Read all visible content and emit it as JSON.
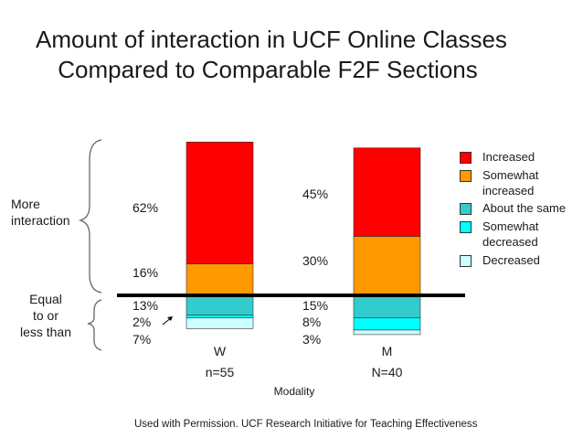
{
  "title_line1": "Amount of interaction in UCF Online Classes",
  "title_line2": "Compared to Comparable F2F Sections",
  "side_labels": {
    "more": [
      "More",
      "interaction"
    ],
    "equal": [
      "Equal",
      "to or",
      "less than"
    ]
  },
  "footnote": "Used with Permission. UCF Research Initiative for Teaching Effectiveness",
  "colors": {
    "increased": "#ff0000",
    "somewhat_increased": "#ff9900",
    "about_same": "#33cccc",
    "somewhat_decreased": "#00ffff",
    "decreased": "#ccffff",
    "baseline": "#000000"
  },
  "chart_data": {
    "type": "bar",
    "stacked": true,
    "xlabel": "Modality",
    "categories": [
      {
        "name": "W",
        "n": "n=55"
      },
      {
        "name": "M",
        "n": "N=40"
      }
    ],
    "series": [
      {
        "name": "Increased",
        "values": [
          62,
          45
        ],
        "labels": [
          "62%",
          "45%"
        ],
        "color_key": "increased"
      },
      {
        "name": "Somewhat increased",
        "values": [
          16,
          30
        ],
        "labels": [
          "16%",
          "30%"
        ],
        "color_key": "somewhat_increased"
      },
      {
        "name": "About the same",
        "values": [
          13,
          15
        ],
        "labels": [
          "13%",
          "15%"
        ],
        "color_key": "about_same"
      },
      {
        "name": "Somewhat decreased",
        "values": [
          2,
          8
        ],
        "labels": [
          "2%",
          "8%"
        ],
        "color_key": "somewhat_decreased"
      },
      {
        "name": "Decreased",
        "values": [
          7,
          3
        ],
        "labels": [
          "7%",
          "3%"
        ],
        "color_key": "decreased"
      }
    ],
    "legend": {
      "placement": "right",
      "items": [
        {
          "label": "Increased",
          "color_key": "increased"
        },
        {
          "label": "Somewhat increased",
          "color_key": "somewhat_increased"
        },
        {
          "label": "About the same",
          "color_key": "about_same"
        },
        {
          "label": "Somewhat decreased",
          "color_key": "somewhat_decreased"
        },
        {
          "label": "Decreased",
          "color_key": "decreased"
        }
      ]
    },
    "grid": false
  }
}
